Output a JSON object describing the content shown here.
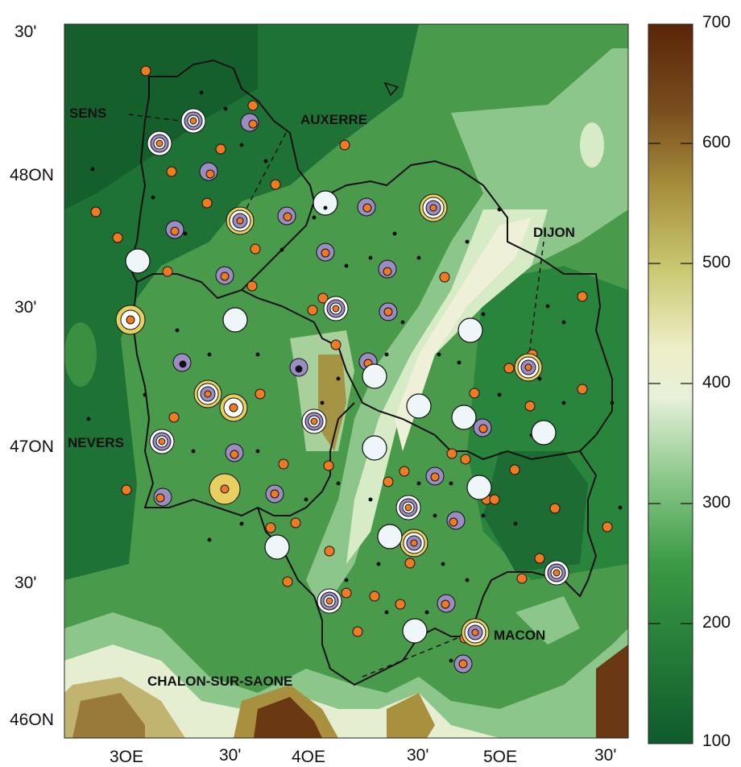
{
  "map": {
    "lat_labels": [
      "30'",
      "48ON",
      "30'",
      "47ON",
      "30'",
      "46ON"
    ],
    "lon_labels": [
      "3OE",
      "30'",
      "4OE",
      "30'",
      "5OE",
      "30'"
    ],
    "cities": [
      "SENS",
      "AUXERRE",
      "DIJON",
      "NEVERS",
      "MACON",
      "CHALON-SUR-SAONE"
    ],
    "colorbar": {
      "ticks": [
        "700",
        "600",
        "500",
        "400",
        "300",
        "200",
        "100"
      ],
      "range": [
        100,
        700
      ],
      "colors": {
        "low": "#1a6b34",
        "mid_low": "#3fa044",
        "mid": "#b8dcaa",
        "neutral": "#f2f2dc",
        "mid_high": "#c9c26a",
        "high": "#9a7a3a",
        "top": "#5a2a0a"
      }
    },
    "marker_colors": {
      "orange": "#f07a20",
      "purple": "#9b8cc4",
      "white": "#eef6fa",
      "yellow": "#e8d060"
    }
  }
}
